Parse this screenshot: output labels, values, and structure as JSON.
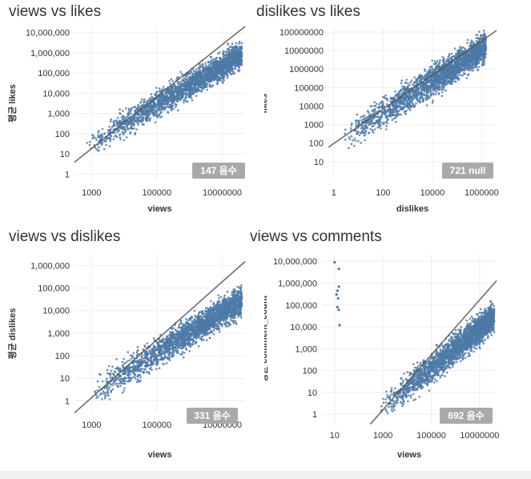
{
  "colors": {
    "points": "#4e79a7",
    "trend": "#555555",
    "badge": "#a9a9a9",
    "badge_text": "#ffffff",
    "grid": "#eeeeee",
    "axis_text": "#333333"
  },
  "chart_data": [
    {
      "type": "scatter",
      "title": "views vs likes",
      "xlabel": "views",
      "ylabel": "평균 likes",
      "x_scale": "log",
      "y_scale": "log",
      "xlim": [
        300,
        50000000
      ],
      "ylim": [
        0.5,
        20000000
      ],
      "x_ticks": [
        1000,
        100000,
        10000000
      ],
      "x_tick_labels": [
        "1000",
        "100000",
        "10000000"
      ],
      "y_ticks": [
        1,
        10,
        100,
        1000,
        10000,
        100000,
        1000000,
        10000000
      ],
      "y_tick_labels": [
        "1",
        "10",
        "100",
        "1,000",
        "10,000",
        "100,000",
        "1,000,000",
        "10,000,000"
      ],
      "trend": {
        "from": [
          300,
          3.9
        ],
        "to": [
          50000000,
          20000000
        ]
      },
      "cloud": {
        "x_min": 700,
        "x_max": 40000000,
        "slope": 0.95,
        "intercept": -1.3,
        "spread": 0.45
      },
      "badge": "147 음수"
    },
    {
      "type": "scatter",
      "title": "dislikes vs likes",
      "xlabel": "dislikes",
      "ylabel": "likes",
      "x_scale": "log",
      "y_scale": "log",
      "xlim": [
        0.6,
        4000000
      ],
      "ylim": [
        1,
        200000000
      ],
      "x_ticks": [
        1,
        100,
        10000,
        1000000
      ],
      "x_tick_labels": [
        "1",
        "100",
        "10000",
        "1000000"
      ],
      "y_ticks": [
        10,
        100,
        1000,
        10000,
        100000,
        1000000,
        10000000,
        100000000
      ],
      "y_tick_labels": [
        "10",
        "100",
        "1000",
        "10000",
        "100000",
        "1000000",
        "10000000",
        "100000000"
      ],
      "trend": {
        "from": [
          0.6,
          60
        ],
        "to": [
          4000000,
          120000000
        ]
      },
      "cloud": {
        "x_min": 2,
        "x_max": 1500000,
        "slope": 0.85,
        "intercept": 1.95,
        "spread": 0.55
      },
      "badge": "721 null"
    },
    {
      "type": "scatter",
      "title": "views vs dislikes",
      "xlabel": "views",
      "ylabel": "평균 dislikes",
      "x_scale": "log",
      "y_scale": "log",
      "xlim": [
        300,
        50000000
      ],
      "ylim": [
        0.3,
        3000000
      ],
      "x_ticks": [
        1000,
        100000,
        10000000
      ],
      "x_tick_labels": [
        "1000",
        "100000",
        "10000000"
      ],
      "y_ticks": [
        1,
        10,
        100,
        1000,
        10000,
        100000,
        1000000
      ],
      "y_tick_labels": [
        "1",
        "10",
        "100",
        "1,000",
        "10,000",
        "100,000",
        "1,000,000"
      ],
      "trend": {
        "from": [
          300,
          0.29
        ],
        "to": [
          50000000,
          1500000
        ]
      },
      "cloud": {
        "x_min": 1000,
        "x_max": 40000000,
        "slope": 0.9,
        "intercept": -2.4,
        "spread": 0.45
      },
      "badge": "331 음수"
    },
    {
      "type": "scatter",
      "title": "views vs comments",
      "xlabel": "views",
      "ylabel": "평균 comment_count",
      "x_scale": "log",
      "y_scale": "log",
      "xlim": [
        3,
        50000000
      ],
      "ylim": [
        0.4,
        20000000
      ],
      "x_ticks": [
        10,
        1000,
        100000,
        10000000
      ],
      "x_tick_labels": [
        "10",
        "1000",
        "100000",
        "10000000"
      ],
      "y_ticks": [
        1,
        10,
        100,
        1000,
        10000,
        100000,
        1000000,
        10000000
      ],
      "y_tick_labels": [
        "1",
        "10",
        "100",
        "1,000",
        "10,000",
        "100,000",
        "1,000,000",
        "10,000,000"
      ],
      "trend": {
        "from": [
          300,
          0.35
        ],
        "to": [
          50000000,
          1300000
        ]
      },
      "cloud": {
        "x_min": 700,
        "x_max": 40000000,
        "slope": 0.9,
        "intercept": -2.4,
        "spread": 0.45
      },
      "outliers": [
        [
          10,
          9000000
        ],
        [
          15,
          4500000
        ],
        [
          15,
          700000
        ],
        [
          13,
          450000
        ],
        [
          12,
          300000
        ],
        [
          14,
          200000
        ],
        [
          13,
          80000
        ],
        [
          15,
          60000
        ],
        [
          16,
          12000
        ]
      ],
      "badge": "692 음수"
    }
  ]
}
